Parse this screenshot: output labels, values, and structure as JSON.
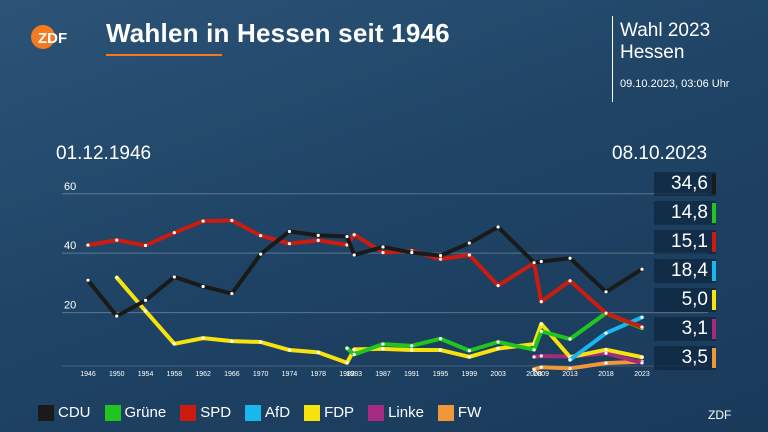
{
  "header": {
    "title": "Wahlen in Hessen seit 1946",
    "brand": "ZDF",
    "event_title": "Wahl 2023",
    "event_region": "Hessen",
    "event_time": "09.10.2023, 03:06 Uhr",
    "date_start": "01.12.1946",
    "date_end": "08.10.2023"
  },
  "footer": {
    "brand": "ZDF"
  },
  "results": [
    {
      "party": "CDU",
      "value": "34,6",
      "color": "#1a1a1a"
    },
    {
      "party": "Grüne",
      "value": "14,8",
      "color": "#22c520"
    },
    {
      "party": "SPD",
      "value": "15,1",
      "color": "#cc1b0f"
    },
    {
      "party": "AfD",
      "value": "18,4",
      "color": "#18b8ee"
    },
    {
      "party": "FDP",
      "value": "5,0",
      "color": "#f7e30c"
    },
    {
      "party": "Linke",
      "value": "3,1",
      "color": "#a52a80"
    },
    {
      "party": "FW",
      "value": "3,5",
      "color": "#f0973a"
    }
  ],
  "chart_data": {
    "type": "line",
    "title": "Wahlen in Hessen seit 1946",
    "xlabel": "",
    "ylabel": "",
    "ylim": [
      0,
      68
    ],
    "yticks": [
      20,
      40,
      60
    ],
    "grid": true,
    "legend_position": "bottom",
    "x": [
      "1946",
      "1950",
      "1954",
      "1958",
      "1962",
      "1966",
      "1970",
      "1974",
      "1978",
      "1982",
      "1983",
      "1987",
      "1991",
      "1995",
      "1999",
      "2003",
      "2008",
      "2009",
      "2013",
      "2018",
      "2023"
    ],
    "x_tick_labels": [
      "1946",
      "1950",
      "1954",
      "1958",
      "1962",
      "1966",
      "1970",
      "1974",
      "1978",
      "1982",
      "1983",
      "1987",
      "1991",
      "1995",
      "1999",
      "2003",
      "2008",
      "2009",
      "2013",
      "2018",
      "2023"
    ],
    "series": [
      {
        "name": "CDU",
        "color": "#1a1a1a",
        "values": [
          30.9,
          18.8,
          24.1,
          32.0,
          28.8,
          26.4,
          39.7,
          47.3,
          46.0,
          45.6,
          39.4,
          42.1,
          40.2,
          39.2,
          43.4,
          48.8,
          36.8,
          37.2,
          38.3,
          27.0,
          34.6
        ]
      },
      {
        "name": "Grüne",
        "color": "#22c520",
        "values": [
          null,
          null,
          null,
          null,
          null,
          null,
          null,
          null,
          null,
          8.0,
          5.9,
          9.4,
          8.8,
          11.2,
          7.2,
          10.1,
          7.5,
          13.7,
          11.1,
          19.8,
          14.8
        ]
      },
      {
        "name": "SPD",
        "color": "#cc1b0f",
        "values": [
          42.7,
          44.4,
          42.6,
          46.9,
          50.8,
          51.0,
          45.9,
          43.2,
          44.3,
          42.8,
          46.2,
          40.2,
          40.8,
          38.0,
          39.4,
          29.1,
          36.7,
          23.7,
          30.7,
          19.8,
          15.1
        ]
      },
      {
        "name": "AfD",
        "color": "#18b8ee",
        "values": [
          null,
          null,
          null,
          null,
          null,
          null,
          null,
          null,
          null,
          null,
          null,
          null,
          null,
          null,
          null,
          null,
          null,
          null,
          4.1,
          13.1,
          18.4
        ]
      },
      {
        "name": "FDP",
        "color": "#f7e30c",
        "values": [
          null,
          31.8,
          20.5,
          9.5,
          11.4,
          10.4,
          10.1,
          7.4,
          6.6,
          3.1,
          7.6,
          7.8,
          7.4,
          7.4,
          5.1,
          7.9,
          9.4,
          16.2,
          5.0,
          7.5,
          5.0
        ]
      },
      {
        "name": "Linke",
        "color": "#a52a80",
        "values": [
          null,
          null,
          null,
          null,
          null,
          null,
          null,
          null,
          null,
          null,
          null,
          null,
          null,
          null,
          null,
          null,
          5.1,
          5.4,
          5.2,
          6.3,
          3.1
        ]
      },
      {
        "name": "FW",
        "color": "#f0973a",
        "values": [
          null,
          null,
          null,
          null,
          null,
          null,
          null,
          null,
          null,
          null,
          null,
          null,
          null,
          null,
          null,
          null,
          0.9,
          1.6,
          1.2,
          3.0,
          3.5
        ]
      }
    ]
  }
}
